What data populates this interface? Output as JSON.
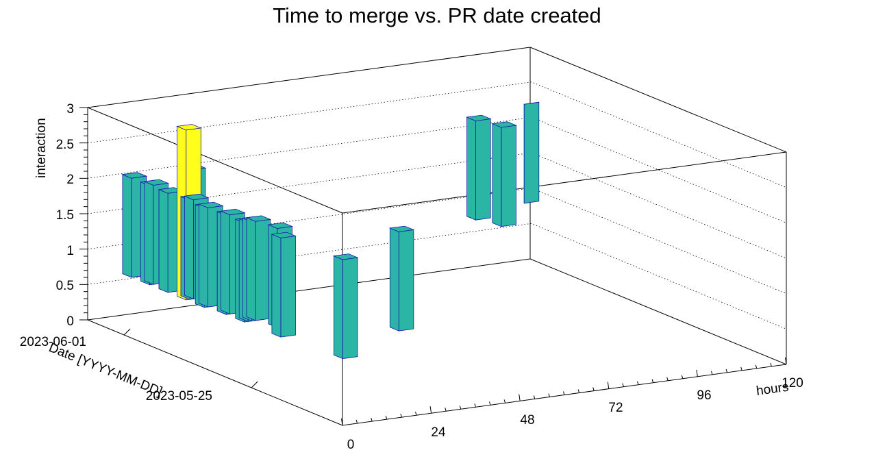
{
  "chart_data": {
    "type": "lego3d",
    "title": "Time to merge vs. PR date created",
    "x_axis": {
      "label": "hours",
      "range": [
        0,
        120
      ],
      "ticks": [
        "0",
        "24",
        "48",
        "72",
        "96",
        "120"
      ]
    },
    "y_axis": {
      "label": "Date [YYYY-MM-DD]",
      "ticks": [
        "2023-06-01",
        "2023-05-25"
      ]
    },
    "z_axis": {
      "label": "interaction",
      "range": [
        0,
        3
      ],
      "ticks": [
        "0",
        "0.5",
        "1",
        "1.5",
        "2",
        "2.5",
        "3"
      ]
    },
    "grid": true,
    "colors": {
      "level1": "#2ab5a5",
      "level2": "#ffff1a",
      "edge": "#1a1aa8"
    },
    "bars": [
      {
        "hours": 2,
        "date": "2023-06-01",
        "value": 1
      },
      {
        "hours": 2,
        "date": "2023-06-01",
        "value": 1
      },
      {
        "hours": 2,
        "date": "2023-06-01",
        "value": 1
      },
      {
        "hours": 2,
        "date": "2023-05-31",
        "value": 1
      },
      {
        "hours": 3,
        "date": "2023-05-31",
        "value": 1
      },
      {
        "hours": 2,
        "date": "2023-05-30",
        "value": 1
      },
      {
        "hours": 2,
        "date": "2023-05-30",
        "value": 1
      },
      {
        "hours": 3,
        "date": "2023-05-29",
        "value": 1
      },
      {
        "hours": 2,
        "date": "2023-05-29",
        "value": 2
      },
      {
        "hours": 3,
        "date": "2023-05-28",
        "value": 1
      },
      {
        "hours": 2,
        "date": "2023-05-28",
        "value": 1
      },
      {
        "hours": 3,
        "date": "2023-05-27",
        "value": 1
      },
      {
        "hours": 3,
        "date": "2023-05-27",
        "value": 1
      },
      {
        "hours": 4,
        "date": "2023-05-27",
        "value": 1
      },
      {
        "hours": 3,
        "date": "2023-05-26",
        "value": 1
      },
      {
        "hours": 4,
        "date": "2023-05-26",
        "value": 1
      },
      {
        "hours": 5,
        "date": "2023-05-26",
        "value": 1
      },
      {
        "hours": 4,
        "date": "2023-05-29",
        "value": 1
      },
      {
        "hours": 3,
        "date": "2023-05-24",
        "value": 1
      },
      {
        "hours": 18,
        "date": "2023-06-01",
        "value": 1
      },
      {
        "hours": 6,
        "date": "2023-05-26",
        "value": 1
      },
      {
        "hours": 7,
        "date": "2023-05-25",
        "value": 1
      },
      {
        "hours": 5,
        "date": "2023-05-21",
        "value": 1
      },
      {
        "hours": 30,
        "date": "2023-05-23",
        "value": 1
      },
      {
        "hours": 100,
        "date": "2023-06-02",
        "value": 1
      },
      {
        "hours": 102,
        "date": "2023-06-01",
        "value": 1
      },
      {
        "hours": 118,
        "date": "2023-06-03",
        "value": 1
      }
    ]
  }
}
